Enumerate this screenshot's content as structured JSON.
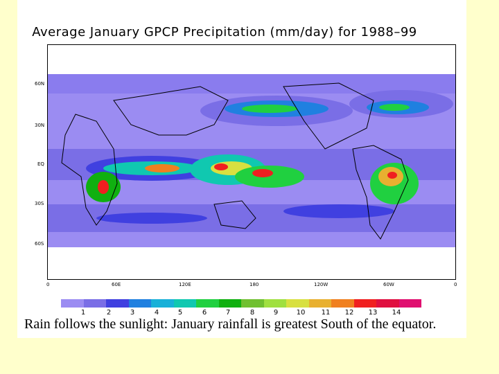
{
  "title": "Average January GPCP Precipitation (mm/day) for 1988–99",
  "map": {
    "lat_labels": [
      "60N",
      "30N",
      "EQ",
      "30S",
      "60S"
    ],
    "lon_labels": [
      "0",
      "60E",
      "120E",
      "180",
      "120W",
      "60W",
      "0"
    ]
  },
  "legend": {
    "colors": [
      "#9b8cf2",
      "#7a6ee6",
      "#4040e0",
      "#2080e0",
      "#18b0d8",
      "#10c8b0",
      "#20d040",
      "#10b010",
      "#70c030",
      "#a0e040",
      "#d8e040",
      "#e8b030",
      "#f08020",
      "#f02020",
      "#e01040",
      "#e01070"
    ],
    "labels": [
      "1",
      "2",
      "3",
      "4",
      "5",
      "6",
      "7",
      "8",
      "9",
      "10",
      "11",
      "12",
      "13",
      "14"
    ]
  },
  "caption": "Rain follows the sunlight: January rainfall is greatest South of the equator."
}
